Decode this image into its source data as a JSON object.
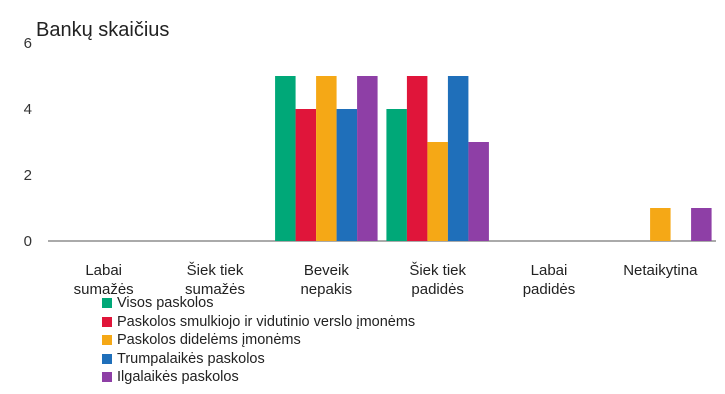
{
  "chart_data": {
    "type": "bar",
    "ylabel": "Bankų skaičius",
    "ylim": [
      0,
      6
    ],
    "yticks": [
      0,
      2,
      4,
      6
    ],
    "grid": false,
    "legend_position": "bottom-left",
    "categories": [
      [
        "Labai",
        "sumažės"
      ],
      [
        "Šiek tiek",
        "sumažės"
      ],
      [
        "Beveik",
        "nepakis"
      ],
      [
        "Šiek tiek",
        "padidės"
      ],
      [
        "Labai",
        "padidės"
      ],
      [
        "Netaikytina"
      ]
    ],
    "series": [
      {
        "name": "Visos paskolos",
        "color": "#00a878",
        "values": [
          0,
          0,
          5,
          4,
          0,
          0
        ]
      },
      {
        "name": "Paskolos smulkiojo ir vidutinio verslo įmonėms",
        "color": "#e0153a",
        "values": [
          0,
          0,
          4,
          5,
          0,
          0
        ]
      },
      {
        "name": "Paskolos didelėms įmonėms",
        "color": "#f5a816",
        "values": [
          0,
          0,
          5,
          3,
          0,
          1
        ]
      },
      {
        "name": "Trumpalaikės paskolos",
        "color": "#1f6fba",
        "values": [
          0,
          0,
          4,
          5,
          0,
          0
        ]
      },
      {
        "name": "Ilgalaikės paskolos",
        "color": "#8e3fa6",
        "values": [
          0,
          0,
          5,
          3,
          0,
          1
        ]
      }
    ]
  }
}
